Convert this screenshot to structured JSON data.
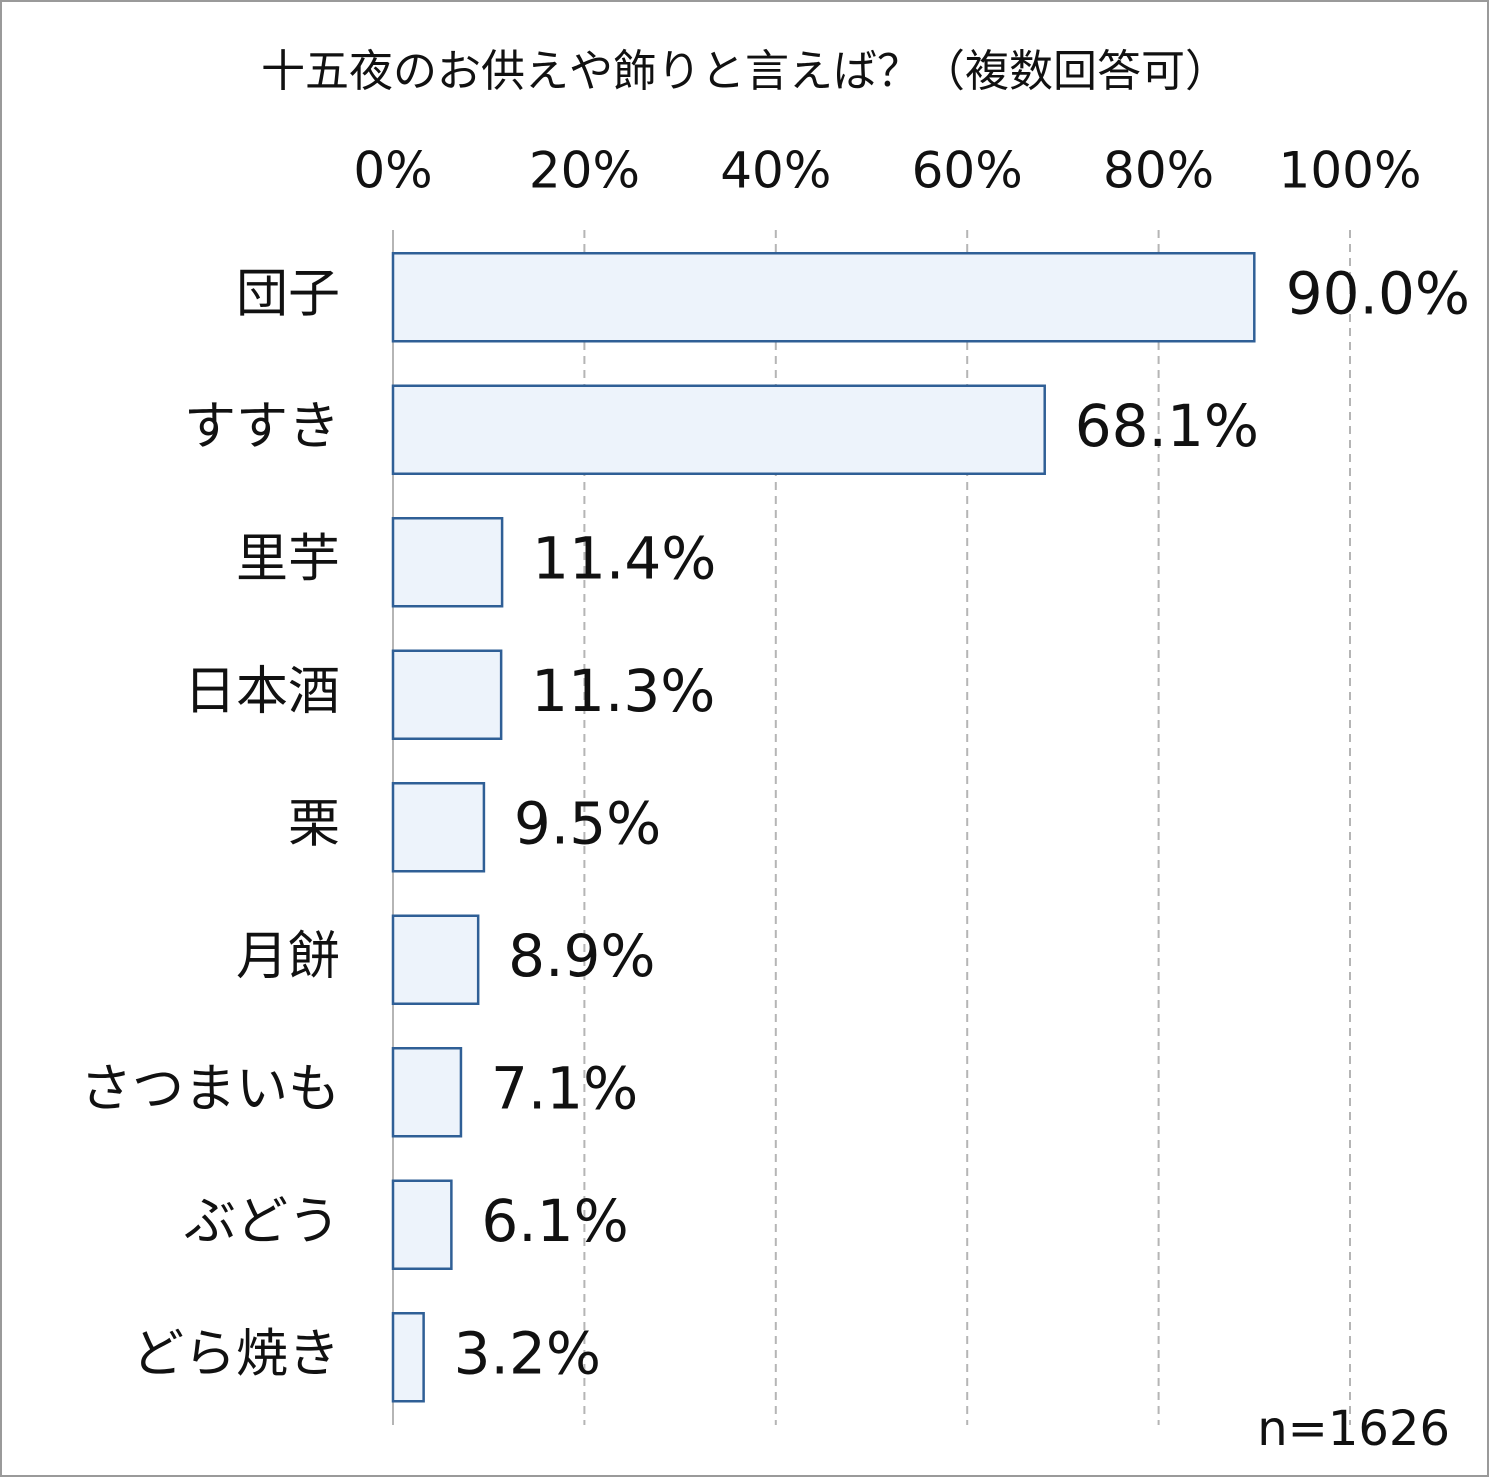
{
  "chart_data": {
    "type": "bar",
    "orientation": "horizontal",
    "title": "十五夜のお供えや飾りと言えば？（複数回答可）",
    "categories": [
      "団子",
      "すすき",
      "里芋",
      "日本酒",
      "栗",
      "月餅",
      "さつまいも",
      "ぶどう",
      "どら焼き"
    ],
    "values": [
      90.0,
      68.1,
      11.4,
      11.3,
      9.5,
      8.9,
      7.1,
      6.1,
      3.2
    ],
    "value_labels": [
      "90.0%",
      "68.1%",
      "11.4%",
      "11.3%",
      "9.5%",
      "8.9%",
      "7.1%",
      "6.1%",
      "3.2%"
    ],
    "color": "#edf3fb",
    "edge_color": "#2f5f96",
    "xlim": [
      0,
      100
    ],
    "xticks": [
      {
        "value": 0,
        "label": "0%"
      },
      {
        "value": 20,
        "label": "20%"
      },
      {
        "value": 40,
        "label": "40%"
      },
      {
        "value": 60,
        "label": "60%"
      },
      {
        "value": 80,
        "label": "80%"
      },
      {
        "value": 100,
        "label": "100%"
      }
    ],
    "grid": true,
    "annotation": "n=1626"
  }
}
